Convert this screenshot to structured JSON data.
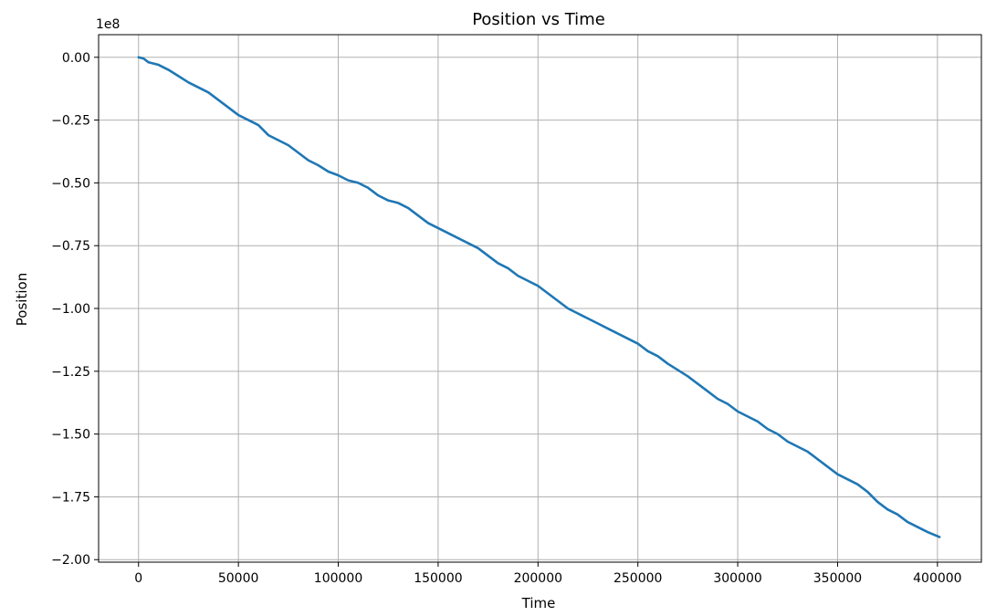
{
  "chart_data": {
    "type": "line",
    "title": "Position vs Time",
    "xlabel": "Time",
    "ylabel": "Position",
    "y_offset_label": "1e8",
    "xlim": [
      -20000,
      422000
    ],
    "ylim": [
      -2.01,
      0.09
    ],
    "grid": true,
    "x_ticks": [
      0,
      50000,
      100000,
      150000,
      200000,
      250000,
      300000,
      350000,
      400000
    ],
    "x_tick_labels": [
      "0",
      "50000",
      "100000",
      "150000",
      "200000",
      "250000",
      "300000",
      "350000",
      "400000"
    ],
    "y_ticks": [
      0,
      -0.25,
      -0.5,
      -0.75,
      -1.0,
      -1.25,
      -1.5,
      -1.75,
      -2.0
    ],
    "y_tick_labels": [
      "0.00",
      "−0.25",
      "−0.50",
      "−0.75",
      "−1.00",
      "−1.25",
      "−1.50",
      "−1.75",
      "−2.00"
    ],
    "series": [
      {
        "color": "#1f77b4",
        "x": [
          0,
          2500,
          5000,
          10000,
          15000,
          20000,
          25000,
          30000,
          35000,
          40000,
          45000,
          50000,
          55000,
          60000,
          65000,
          70000,
          75000,
          80000,
          85000,
          90000,
          95000,
          100000,
          105000,
          110000,
          115000,
          120000,
          125000,
          130000,
          135000,
          140000,
          145000,
          150000,
          155000,
          160000,
          165000,
          170000,
          175000,
          180000,
          185000,
          190000,
          195000,
          200000,
          205000,
          210000,
          215000,
          220000,
          225000,
          230000,
          235000,
          240000,
          245000,
          250000,
          255000,
          260000,
          265000,
          270000,
          275000,
          280000,
          285000,
          290000,
          295000,
          300000,
          305000,
          310000,
          315000,
          320000,
          325000,
          330000,
          335000,
          340000,
          345000,
          350000,
          355000,
          360000,
          365000,
          370000,
          375000,
          380000,
          385000,
          390000,
          395000,
          401000
        ],
        "y": [
          0.0,
          -0.005,
          -0.02,
          -0.03,
          -0.05,
          -0.075,
          -0.1,
          -0.12,
          -0.14,
          -0.17,
          -0.2,
          -0.23,
          -0.25,
          -0.27,
          -0.31,
          -0.33,
          -0.35,
          -0.38,
          -0.41,
          -0.43,
          -0.455,
          -0.47,
          -0.49,
          -0.5,
          -0.52,
          -0.55,
          -0.57,
          -0.58,
          -0.6,
          -0.63,
          -0.66,
          -0.68,
          -0.7,
          -0.72,
          -0.74,
          -0.76,
          -0.79,
          -0.82,
          -0.84,
          -0.87,
          -0.89,
          -0.91,
          -0.94,
          -0.97,
          -1.0,
          -1.02,
          -1.04,
          -1.06,
          -1.08,
          -1.1,
          -1.12,
          -1.14,
          -1.17,
          -1.19,
          -1.22,
          -1.245,
          -1.27,
          -1.3,
          -1.33,
          -1.36,
          -1.38,
          -1.41,
          -1.43,
          -1.45,
          -1.48,
          -1.5,
          -1.53,
          -1.55,
          -1.57,
          -1.6,
          -1.63,
          -1.66,
          -1.68,
          -1.7,
          -1.73,
          -1.77,
          -1.8,
          -1.82,
          -1.85,
          -1.87,
          -1.89,
          -1.91
        ]
      }
    ]
  }
}
